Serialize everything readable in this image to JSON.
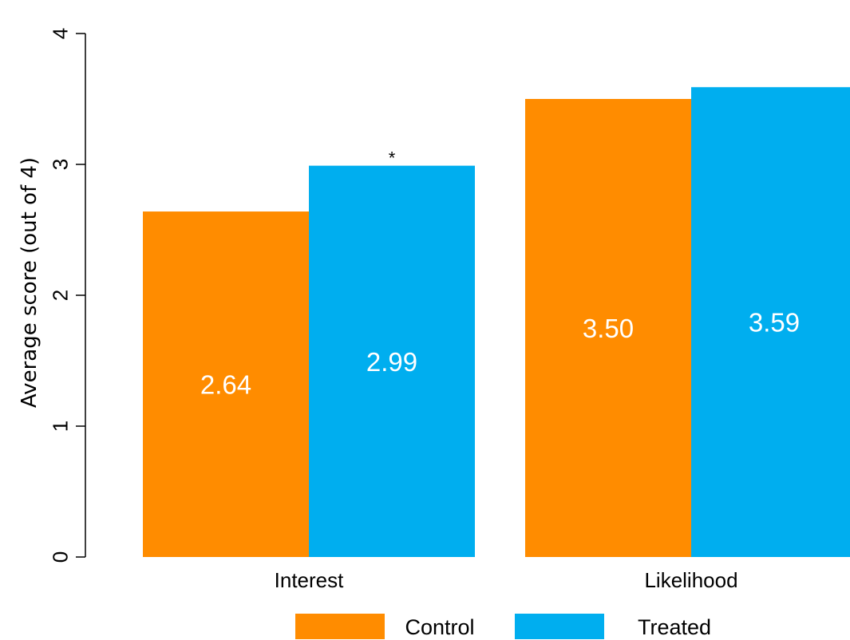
{
  "chart_data": {
    "type": "bar",
    "title": "",
    "xlabel": "",
    "ylabel": "Average score (out of 4)",
    "ylim": [
      0,
      4
    ],
    "yticks": [
      0,
      1,
      2,
      3,
      4
    ],
    "ytick_labels": [
      "0",
      "1",
      "2",
      "3",
      "4"
    ],
    "grid": false,
    "legend_position": "bottom",
    "categories": [
      "Interest",
      "Likelihood"
    ],
    "series": [
      {
        "name": "Control",
        "color": "#FF8C00",
        "values": [
          2.64,
          3.5
        ],
        "value_labels": [
          "2.64",
          "3.50"
        ]
      },
      {
        "name": "Treated",
        "color": "#00AEEF",
        "values": [
          2.99,
          3.59
        ],
        "value_labels": [
          "2.99",
          "3.59"
        ]
      }
    ],
    "annotations": [
      {
        "text": "*",
        "series": "Treated",
        "category": "Interest"
      }
    ]
  }
}
